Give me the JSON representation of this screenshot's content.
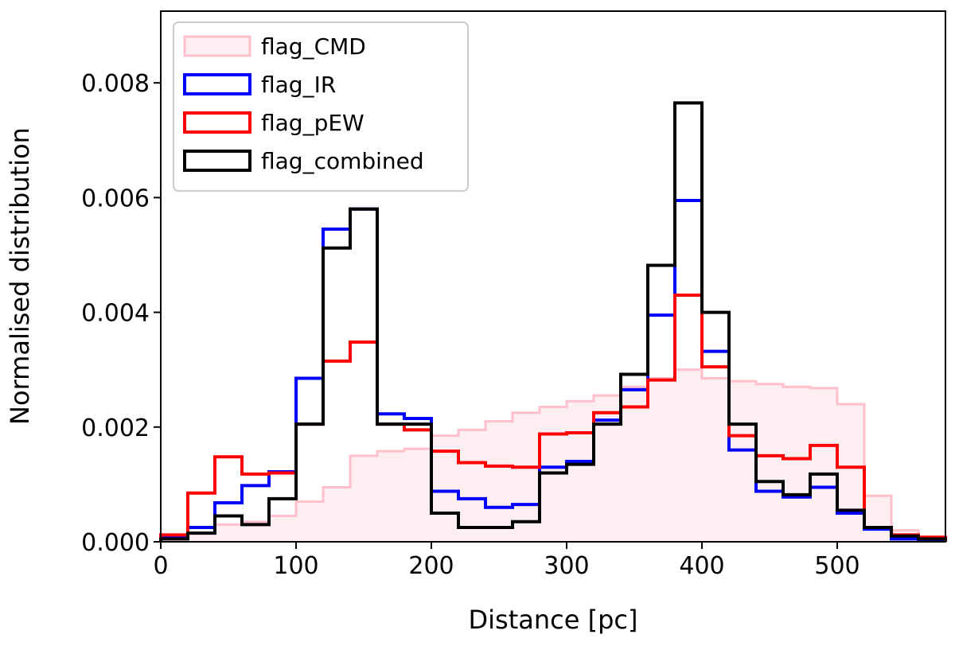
{
  "chart_data": {
    "type": "histogram",
    "title": "",
    "xlabel": "Distance [pc]",
    "ylabel": "Normalised distribution",
    "xlim": [
      0,
      580
    ],
    "ylim": [
      0,
      0.00925
    ],
    "xticks": [
      "0",
      "100",
      "200",
      "300",
      "400",
      "500"
    ],
    "xtick_values": [
      0,
      100,
      200,
      300,
      400,
      500
    ],
    "yticks": [
      "0.000",
      "0.002",
      "0.004",
      "0.006",
      "0.008"
    ],
    "ytick_values": [
      0,
      0.002,
      0.004,
      0.006,
      0.008
    ],
    "legend_position": "top-left",
    "bin_edges": [
      0,
      20,
      40,
      60,
      80,
      100,
      120,
      140,
      160,
      180,
      200,
      220,
      240,
      260,
      280,
      300,
      320,
      340,
      360,
      380,
      400,
      420,
      440,
      460,
      480,
      500,
      520,
      540,
      560,
      580
    ],
    "series": [
      {
        "name": "flag_CMD",
        "style": "filled",
        "edge_color": "#ffc0cb",
        "fill_color": "#fdeef2",
        "values": [
          5e-05,
          0.00015,
          0.0003,
          0.00035,
          0.00045,
          0.0007,
          0.00095,
          0.0015,
          0.00158,
          0.00162,
          0.00185,
          0.00195,
          0.0021,
          0.00225,
          0.00235,
          0.00245,
          0.00255,
          0.0027,
          0.00285,
          0.003,
          0.00285,
          0.0028,
          0.00275,
          0.0027,
          0.00268,
          0.0024,
          0.0008,
          0.0002,
          8e-05
        ]
      },
      {
        "name": "flag_IR",
        "style": "step",
        "edge_color": "#0000ff",
        "values": [
          0.0001,
          0.00025,
          0.00068,
          0.00098,
          0.00122,
          0.00285,
          0.00545,
          0.0058,
          0.00223,
          0.00215,
          0.00088,
          0.00075,
          0.0006,
          0.00065,
          0.0013,
          0.0014,
          0.00212,
          0.00265,
          0.00395,
          0.00595,
          0.00332,
          0.0016,
          0.00088,
          0.00078,
          0.00095,
          0.0005,
          0.00022,
          5e-05,
          4e-05
        ]
      },
      {
        "name": "flag_pEW",
        "style": "step",
        "edge_color": "#ff0000",
        "values": [
          0.00012,
          0.00085,
          0.00148,
          0.00118,
          0.0012,
          0.00205,
          0.00315,
          0.00348,
          0.00205,
          0.00195,
          0.00158,
          0.00138,
          0.00132,
          0.0013,
          0.00188,
          0.0019,
          0.00225,
          0.00235,
          0.00282,
          0.0043,
          0.00305,
          0.00185,
          0.0015,
          0.00145,
          0.00168,
          0.0013,
          0.00025,
          0.00012,
          8e-05
        ]
      },
      {
        "name": "flag_combined",
        "style": "step",
        "edge_color": "#000000",
        "values": [
          5e-05,
          0.00015,
          0.00045,
          0.0003,
          0.00075,
          0.00205,
          0.00512,
          0.0058,
          0.00205,
          0.00205,
          0.0005,
          0.00025,
          0.00025,
          0.00035,
          0.0012,
          0.00135,
          0.00205,
          0.00292,
          0.00482,
          0.00765,
          0.004,
          0.00205,
          0.00105,
          0.00082,
          0.00118,
          0.00055,
          0.00025,
          0.0001,
          5e-05
        ]
      }
    ]
  }
}
